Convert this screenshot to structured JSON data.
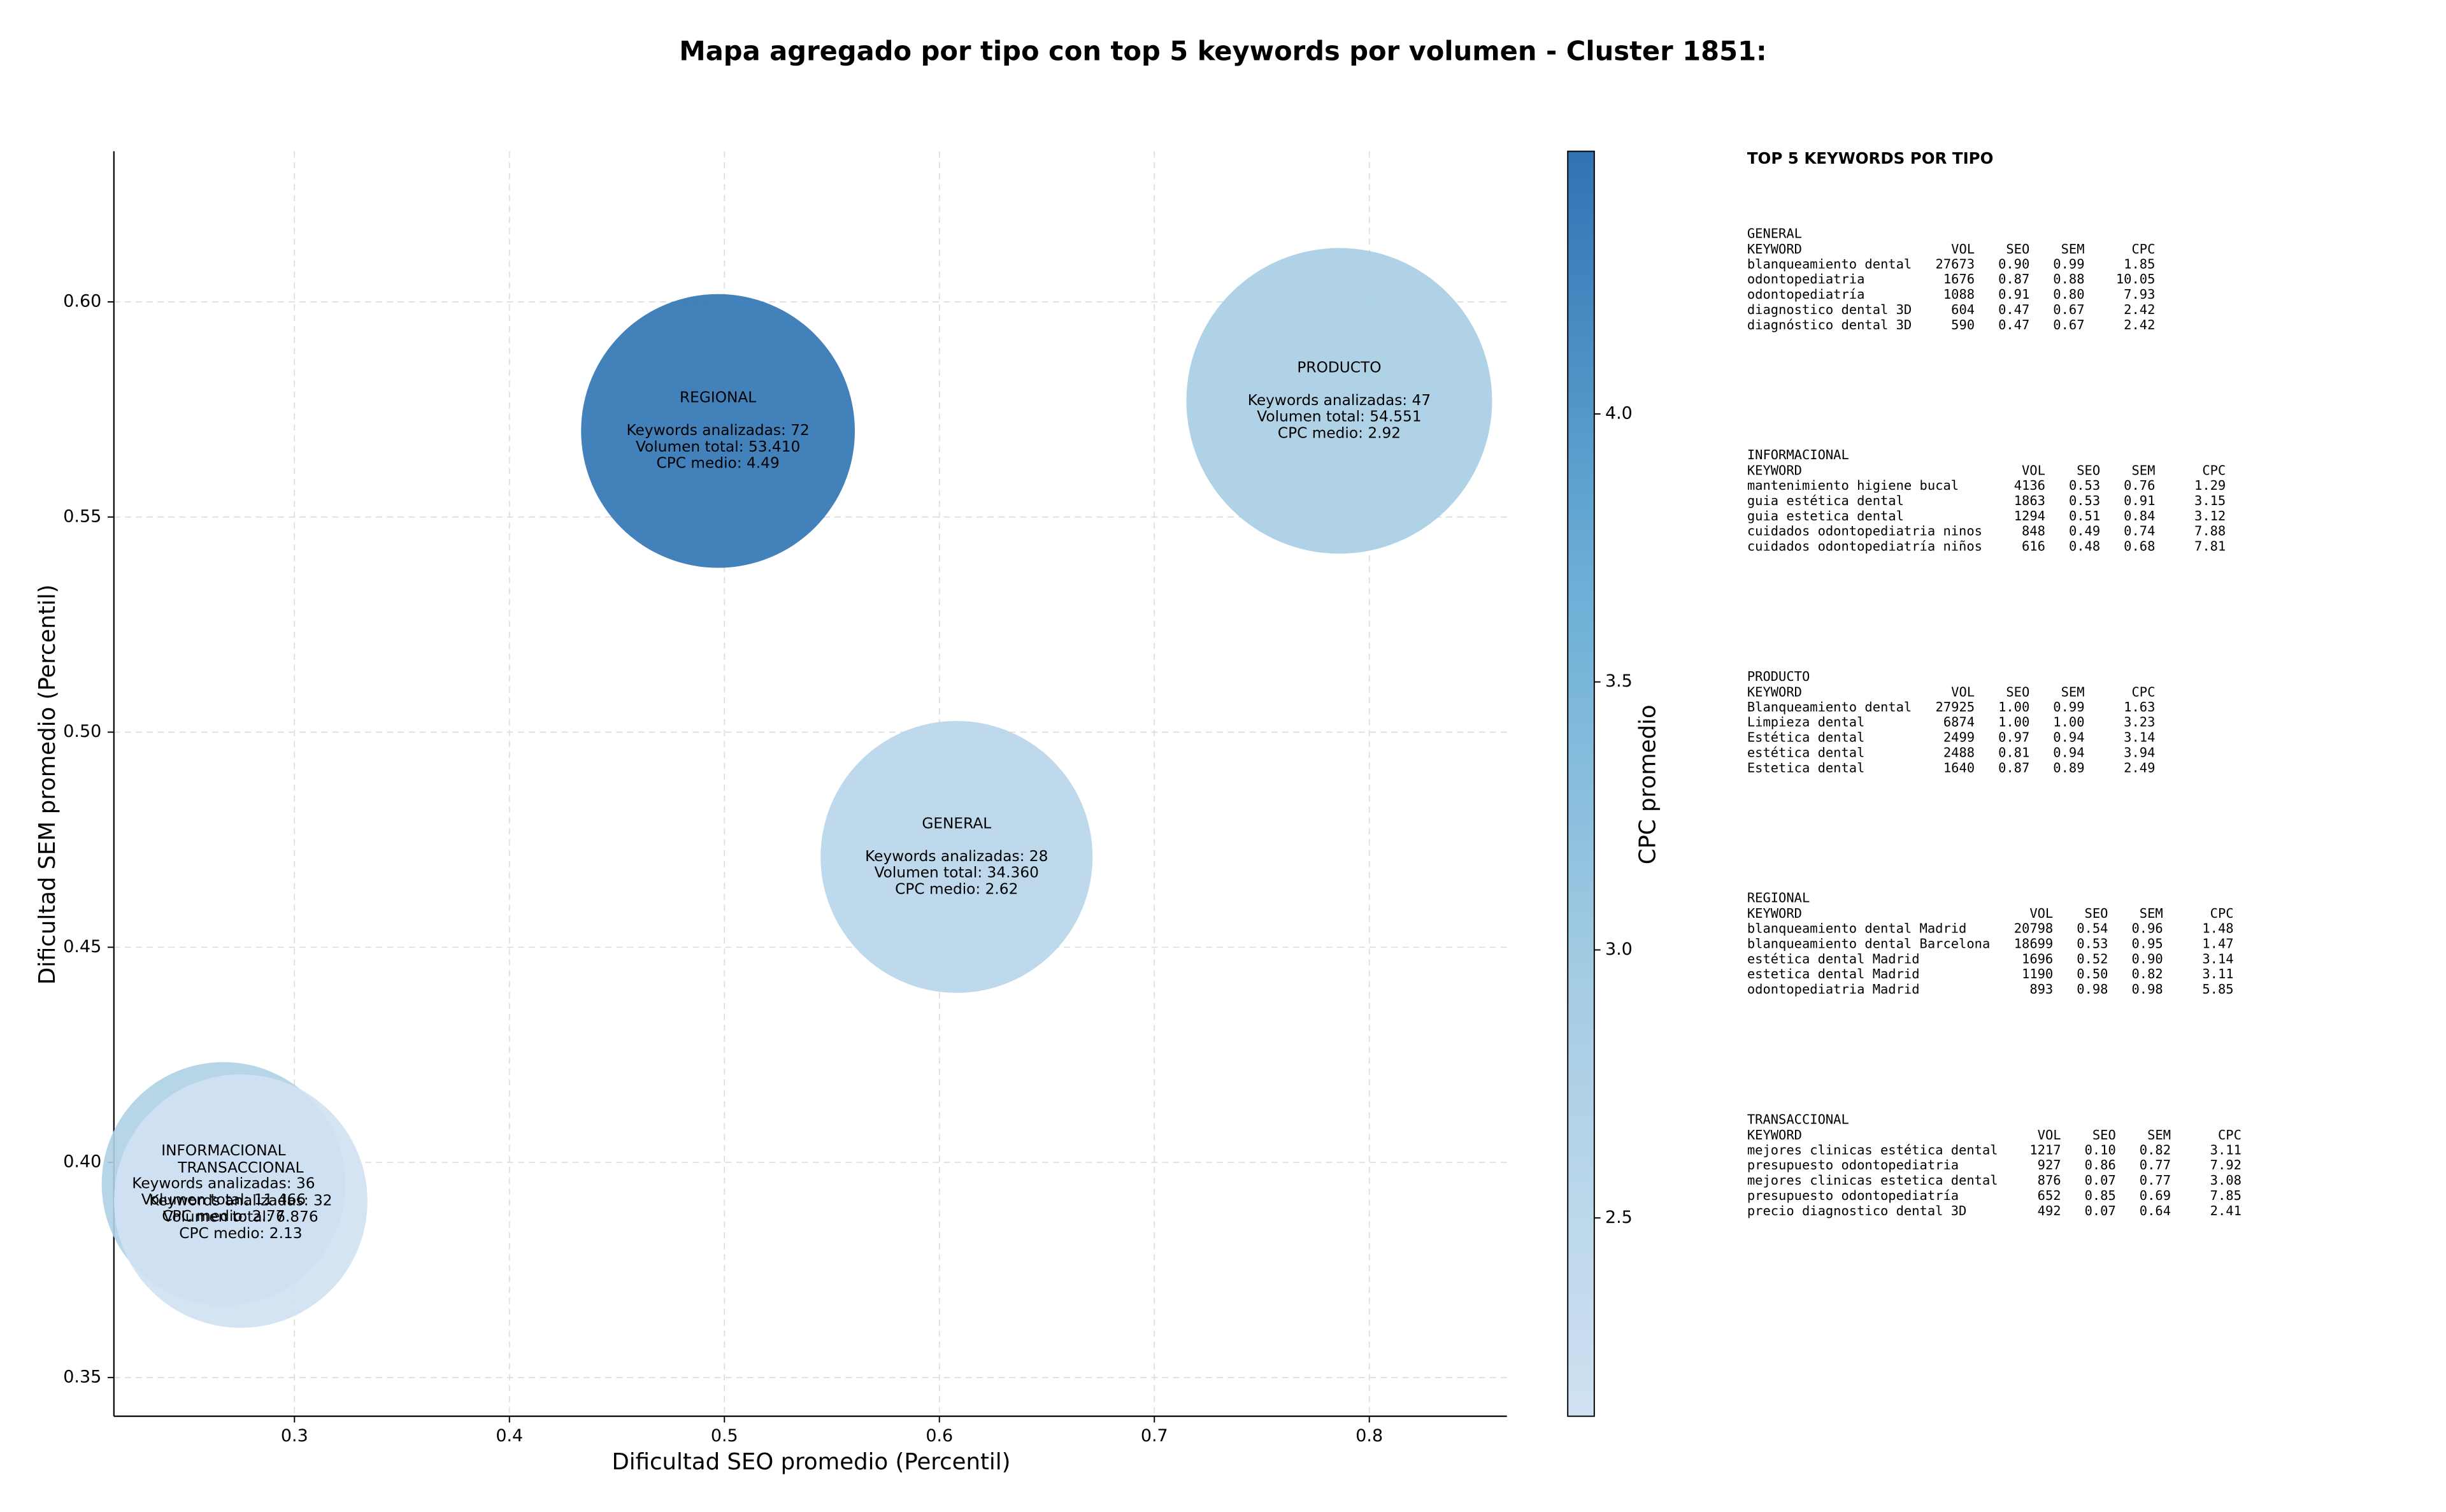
{
  "chart_data": {
    "type": "bubble",
    "title": "Mapa agregado por tipo con top 5 keywords por volumen - Cluster 1851:",
    "x_label": "Dificultad SEO promedio (Percentil)",
    "y_label": "Dificultad SEM promedio (Percentil)",
    "categories": [
      "REGIONAL",
      "PRODUCTO",
      "GENERAL",
      "INFORMACIONAL",
      "TRANSACCIONAL"
    ],
    "x": [
      0.497,
      0.786,
      0.608,
      0.267,
      0.275
    ],
    "values": [
      0.57,
      0.577,
      0.471,
      0.395,
      0.391
    ],
    "sizes": [
      7700,
      9600,
      7600,
      6100,
      6600
    ],
    "cpc": [
      4.49,
      2.92,
      2.62,
      2.77,
      2.13
    ],
    "keywords_text": [
      "Keywords analizadas: 72",
      "Keywords analizadas: 47",
      "Keywords analizadas: 28",
      "Keywords analizadas: 36",
      "Keywords analizadas: 32"
    ],
    "volume_text": [
      "Volumen total: 53.410",
      "Volumen total: 54.551",
      "Volumen total: 34.360",
      "Volumen total: 11.466",
      "Volumen total: 6.876"
    ],
    "cpc_text": [
      "CPC medio: 4.49",
      "CPC medio: 2.92",
      "CPC medio: 2.62",
      "CPC medio: 2.77",
      "CPC medio: 2.13"
    ],
    "xlim": [
      0.216,
      0.864
    ],
    "ylim": [
      0.341,
      0.635
    ],
    "xticks": [
      0.3,
      0.4,
      0.5,
      0.6,
      0.7,
      0.8
    ],
    "yticks": [
      0.35,
      {
        "value": 0.4,
        "label": "0.40"
      },
      0.45,
      {
        "value": 0.5,
        "label": "0.50"
      },
      0.55,
      {
        "value": 0.6,
        "label": "0.60"
      }
    ],
    "grid": true,
    "colorbar": {
      "label": "CPC promedio",
      "lim": [
        2.13,
        4.49
      ],
      "ticks": [
        2.5,
        {
          "value": 3.0,
          "label": "3.0"
        },
        3.5,
        {
          "value": 4.0,
          "label": "4.0"
        }
      ],
      "colormap": [
        "#d0e1f2",
        "#a6cde3",
        "#6aaed6",
        "#2f73b4"
      ]
    }
  },
  "keyword_panel": {
    "title": "TOP 5 KEYWORDS POR TIPO",
    "columns": [
      "KEYWORD",
      "VOL",
      "SEO",
      "SEM",
      "CPC"
    ],
    "groups": [
      {
        "name": "GENERAL",
        "rows": [
          [
            "blanqueamiento dental",
            "27673",
            "0.90",
            "0.99",
            "1.85"
          ],
          [
            "odontopediatria",
            "1676",
            "0.87",
            "0.88",
            "10.05"
          ],
          [
            "odontopediatría",
            "1088",
            "0.91",
            "0.80",
            "7.93"
          ],
          [
            "diagnostico dental 3D",
            "604",
            "0.47",
            "0.67",
            "2.42"
          ],
          [
            "diagnóstico dental 3D",
            "590",
            "0.47",
            "0.67",
            "2.42"
          ]
        ]
      },
      {
        "name": "INFORMACIONAL",
        "rows": [
          [
            "mantenimiento higiene bucal",
            "4136",
            "0.53",
            "0.76",
            "1.29"
          ],
          [
            "guia estética dental",
            "1863",
            "0.53",
            "0.91",
            "3.15"
          ],
          [
            "guia estetica dental",
            "1294",
            "0.51",
            "0.84",
            "3.12"
          ],
          [
            "cuidados odontopediatria ninos",
            "848",
            "0.49",
            "0.74",
            "7.88"
          ],
          [
            "cuidados odontopediatría niños",
            "616",
            "0.48",
            "0.68",
            "7.81"
          ]
        ]
      },
      {
        "name": "PRODUCTO",
        "rows": [
          [
            "Blanqueamiento dental",
            "27925",
            "1.00",
            "0.99",
            "1.63"
          ],
          [
            "Limpieza dental",
            "6874",
            "1.00",
            "1.00",
            "3.23"
          ],
          [
            "Estética dental",
            "2499",
            "0.97",
            "0.94",
            "3.14"
          ],
          [
            "estética dental",
            "2488",
            "0.81",
            "0.94",
            "3.94"
          ],
          [
            "Estetica dental",
            "1640",
            "0.87",
            "0.89",
            "2.49"
          ]
        ]
      },
      {
        "name": "REGIONAL",
        "rows": [
          [
            "blanqueamiento dental Madrid",
            "20798",
            "0.54",
            "0.96",
            "1.48"
          ],
          [
            "blanqueamiento dental Barcelona",
            "18699",
            "0.53",
            "0.95",
            "1.47"
          ],
          [
            "estética dental Madrid",
            "1696",
            "0.52",
            "0.90",
            "3.14"
          ],
          [
            "estetica dental Madrid",
            "1190",
            "0.50",
            "0.82",
            "3.11"
          ],
          [
            "odontopediatria Madrid",
            "893",
            "0.98",
            "0.98",
            "5.85"
          ]
        ]
      },
      {
        "name": "TRANSACCIONAL",
        "rows": [
          [
            "mejores clinicas estética dental",
            "1217",
            "0.10",
            "0.82",
            "3.11"
          ],
          [
            "presupuesto odontopediatria",
            "927",
            "0.86",
            "0.77",
            "7.92"
          ],
          [
            "mejores clinicas estetica dental",
            "876",
            "0.07",
            "0.77",
            "3.08"
          ],
          [
            "presupuesto odontopediatría",
            "652",
            "0.85",
            "0.69",
            "7.85"
          ],
          [
            "precio diagnostico dental 3D",
            "492",
            "0.07",
            "0.64",
            "2.41"
          ]
        ]
      }
    ]
  }
}
